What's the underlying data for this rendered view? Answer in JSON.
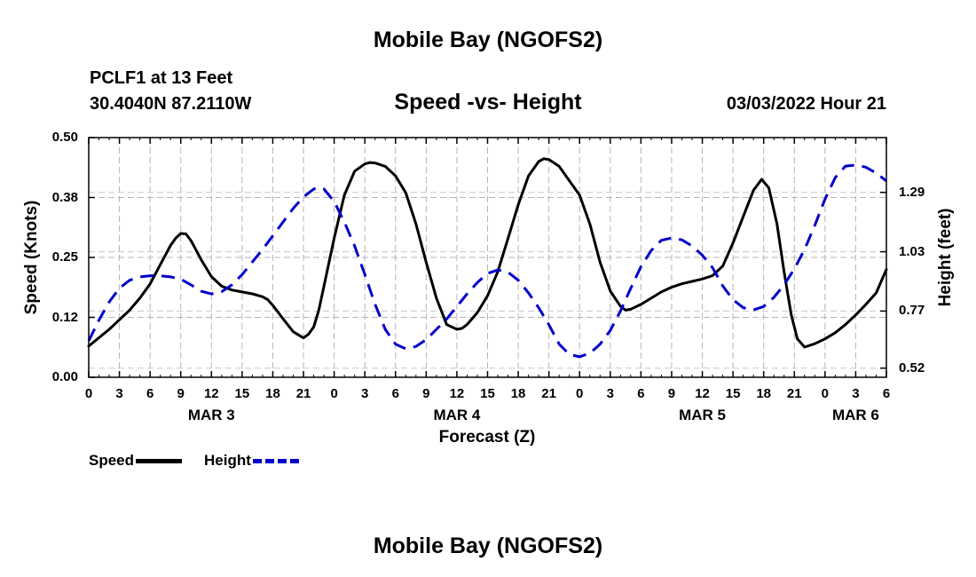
{
  "page": {
    "title_top": "Mobile Bay (NGOFS2)",
    "title_bottom": "Mobile Bay (NGOFS2)",
    "station": "PCLF1 at 13 Feet",
    "coords": "30.4040N  87.2110W",
    "date": "03/03/2022 Hour 21"
  },
  "chart_data": {
    "type": "line",
    "title": "Speed -vs- Height",
    "xlabel": "Forecast (Z)",
    "ylabel_left": "Speed (Knots)",
    "ylabel_right": "Height (feet)",
    "xlim": [
      0,
      78
    ],
    "ylim_left": [
      0,
      0.5
    ],
    "ylim_right": [
      0.48,
      1.53
    ],
    "y_ticks_left": [
      {
        "value": 0.0,
        "label": "0.00"
      },
      {
        "value": 0.125,
        "label": "0.12"
      },
      {
        "value": 0.25,
        "label": "0.25"
      },
      {
        "value": 0.375,
        "label": "0.38"
      },
      {
        "value": 0.5,
        "label": "0.50"
      }
    ],
    "y_ticks_right": [
      {
        "value": 0.52,
        "label": "0.52"
      },
      {
        "value": 0.77,
        "label": "0.77"
      },
      {
        "value": 1.03,
        "label": "1.03"
      },
      {
        "value": 1.29,
        "label": "1.29"
      }
    ],
    "x_ticks": [
      {
        "x": 0,
        "label": "0"
      },
      {
        "x": 3,
        "label": "3"
      },
      {
        "x": 6,
        "label": "6"
      },
      {
        "x": 9,
        "label": "9"
      },
      {
        "x": 12,
        "label": "12"
      },
      {
        "x": 15,
        "label": "15"
      },
      {
        "x": 18,
        "label": "18"
      },
      {
        "x": 21,
        "label": "21"
      },
      {
        "x": 24,
        "label": "0"
      },
      {
        "x": 27,
        "label": "3"
      },
      {
        "x": 30,
        "label": "6"
      },
      {
        "x": 33,
        "label": "9"
      },
      {
        "x": 36,
        "label": "12"
      },
      {
        "x": 39,
        "label": "15"
      },
      {
        "x": 42,
        "label": "18"
      },
      {
        "x": 45,
        "label": "21"
      },
      {
        "x": 48,
        "label": "0"
      },
      {
        "x": 51,
        "label": "3"
      },
      {
        "x": 54,
        "label": "6"
      },
      {
        "x": 57,
        "label": "9"
      },
      {
        "x": 60,
        "label": "12"
      },
      {
        "x": 63,
        "label": "15"
      },
      {
        "x": 66,
        "label": "18"
      },
      {
        "x": 69,
        "label": "21"
      },
      {
        "x": 72,
        "label": "0"
      },
      {
        "x": 75,
        "label": "3"
      },
      {
        "x": 78,
        "label": "6"
      }
    ],
    "day_labels": [
      {
        "x": 12,
        "label": "MAR 3"
      },
      {
        "x": 36,
        "label": "MAR 4"
      },
      {
        "x": 60,
        "label": "MAR 5"
      },
      {
        "x": 75,
        "label": "MAR 6"
      }
    ],
    "grid": true,
    "legend": [
      {
        "name": "Speed",
        "color": "#000000",
        "style": "solid"
      },
      {
        "name": "Height",
        "color": "#0000cc",
        "style": "dashed"
      }
    ],
    "series": [
      {
        "name": "Speed",
        "axis": "left",
        "color": "#000000",
        "style": "solid",
        "points": [
          [
            0,
            0.065
          ],
          [
            2,
            0.1
          ],
          [
            4,
            0.14
          ],
          [
            5,
            0.165
          ],
          [
            6,
            0.195
          ],
          [
            7,
            0.235
          ],
          [
            8,
            0.275
          ],
          [
            8.5,
            0.29
          ],
          [
            9,
            0.3
          ],
          [
            9.5,
            0.299
          ],
          [
            10,
            0.285
          ],
          [
            11,
            0.245
          ],
          [
            12,
            0.21
          ],
          [
            13,
            0.19
          ],
          [
            14,
            0.182
          ],
          [
            15,
            0.178
          ],
          [
            16,
            0.174
          ],
          [
            17,
            0.168
          ],
          [
            17.5,
            0.162
          ],
          [
            18,
            0.15
          ],
          [
            19,
            0.122
          ],
          [
            20,
            0.095
          ],
          [
            21,
            0.082
          ],
          [
            21.5,
            0.09
          ],
          [
            22,
            0.105
          ],
          [
            22.5,
            0.14
          ],
          [
            23,
            0.19
          ],
          [
            24,
            0.29
          ],
          [
            25,
            0.38
          ],
          [
            26,
            0.43
          ],
          [
            27,
            0.445
          ],
          [
            27.5,
            0.448
          ],
          [
            28,
            0.447
          ],
          [
            29,
            0.44
          ],
          [
            30,
            0.42
          ],
          [
            31,
            0.385
          ],
          [
            32,
            0.32
          ],
          [
            33,
            0.24
          ],
          [
            34,
            0.165
          ],
          [
            35,
            0.11
          ],
          [
            36,
            0.1
          ],
          [
            36.5,
            0.102
          ],
          [
            37,
            0.11
          ],
          [
            38,
            0.135
          ],
          [
            39,
            0.17
          ],
          [
            40,
            0.22
          ],
          [
            41,
            0.29
          ],
          [
            42,
            0.36
          ],
          [
            43,
            0.42
          ],
          [
            44,
            0.45
          ],
          [
            44.5,
            0.456
          ],
          [
            45,
            0.454
          ],
          [
            46,
            0.44
          ],
          [
            47,
            0.41
          ],
          [
            48,
            0.38
          ],
          [
            49,
            0.32
          ],
          [
            50,
            0.24
          ],
          [
            51,
            0.18
          ],
          [
            52,
            0.148
          ],
          [
            52.5,
            0.14
          ],
          [
            53,
            0.142
          ],
          [
            54,
            0.152
          ],
          [
            55,
            0.165
          ],
          [
            56,
            0.178
          ],
          [
            57,
            0.188
          ],
          [
            58,
            0.195
          ],
          [
            59,
            0.2
          ],
          [
            60,
            0.205
          ],
          [
            61,
            0.212
          ],
          [
            62,
            0.232
          ],
          [
            63,
            0.28
          ],
          [
            64,
            0.335
          ],
          [
            65,
            0.39
          ],
          [
            65.8,
            0.413
          ],
          [
            66.5,
            0.395
          ],
          [
            67.3,
            0.32
          ],
          [
            68,
            0.22
          ],
          [
            68.7,
            0.13
          ],
          [
            69.3,
            0.08
          ],
          [
            70,
            0.063
          ],
          [
            71,
            0.07
          ],
          [
            72,
            0.08
          ],
          [
            73,
            0.093
          ],
          [
            74,
            0.11
          ],
          [
            75,
            0.13
          ],
          [
            76,
            0.152
          ],
          [
            77,
            0.176
          ],
          [
            78,
            0.225
          ]
        ]
      },
      {
        "name": "Height",
        "axis": "right",
        "color": "#0000cc",
        "style": "dashed",
        "points": [
          [
            0,
            0.64
          ],
          [
            1,
            0.73
          ],
          [
            2,
            0.81
          ],
          [
            3,
            0.87
          ],
          [
            4,
            0.905
          ],
          [
            5,
            0.92
          ],
          [
            6,
            0.925
          ],
          [
            7,
            0.924
          ],
          [
            8,
            0.92
          ],
          [
            9,
            0.91
          ],
          [
            10,
            0.885
          ],
          [
            11,
            0.857
          ],
          [
            12,
            0.845
          ],
          [
            13,
            0.855
          ],
          [
            14,
            0.885
          ],
          [
            15,
            0.93
          ],
          [
            16,
            0.985
          ],
          [
            17,
            1.04
          ],
          [
            18,
            1.1
          ],
          [
            19,
            1.16
          ],
          [
            20,
            1.22
          ],
          [
            21,
            1.27
          ],
          [
            22,
            1.305
          ],
          [
            22.5,
            1.312
          ],
          [
            23,
            1.305
          ],
          [
            24,
            1.25
          ],
          [
            25,
            1.16
          ],
          [
            26,
            1.055
          ],
          [
            27,
            0.93
          ],
          [
            28,
            0.8
          ],
          [
            29,
            0.69
          ],
          [
            30,
            0.625
          ],
          [
            31,
            0.605
          ],
          [
            32,
            0.615
          ],
          [
            33,
            0.645
          ],
          [
            34,
            0.69
          ],
          [
            35,
            0.735
          ],
          [
            36,
            0.79
          ],
          [
            37,
            0.845
          ],
          [
            38,
            0.895
          ],
          [
            39,
            0.935
          ],
          [
            40,
            0.95
          ],
          [
            41,
            0.94
          ],
          [
            42,
            0.905
          ],
          [
            43,
            0.85
          ],
          [
            44,
            0.785
          ],
          [
            45,
            0.71
          ],
          [
            46,
            0.625
          ],
          [
            47,
            0.58
          ],
          [
            48,
            0.57
          ],
          [
            49,
            0.585
          ],
          [
            50,
            0.625
          ],
          [
            51,
            0.685
          ],
          [
            52,
            0.77
          ],
          [
            53,
            0.87
          ],
          [
            54,
            0.965
          ],
          [
            55,
            1.035
          ],
          [
            56,
            1.08
          ],
          [
            57,
            1.09
          ],
          [
            58,
            1.082
          ],
          [
            59,
            1.055
          ],
          [
            60,
            1.015
          ],
          [
            61,
            0.96
          ],
          [
            62,
            0.88
          ],
          [
            63,
            0.82
          ],
          [
            64,
            0.785
          ],
          [
            65,
            0.775
          ],
          [
            66,
            0.79
          ],
          [
            67,
            0.83
          ],
          [
            68,
            0.885
          ],
          [
            69,
            0.955
          ],
          [
            70,
            1.04
          ],
          [
            71,
            1.145
          ],
          [
            72,
            1.26
          ],
          [
            73,
            1.355
          ],
          [
            74,
            1.405
          ],
          [
            75,
            1.41
          ],
          [
            76,
            1.4
          ],
          [
            77,
            1.375
          ],
          [
            78,
            1.34
          ]
        ]
      }
    ]
  }
}
